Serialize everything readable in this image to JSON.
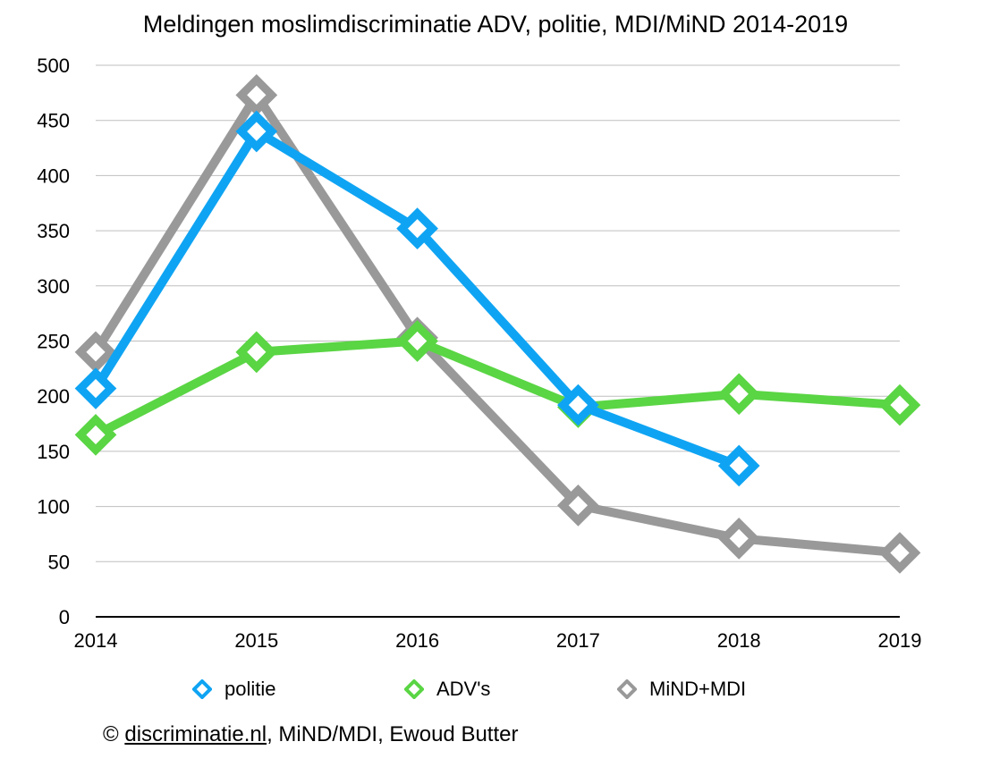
{
  "chart_data": {
    "type": "line",
    "title": "Meldingen moslimdiscriminatie ADV, politie, MDI/MiND 2014-2019",
    "categories": [
      "2014",
      "2015",
      "2016",
      "2017",
      "2018",
      "2019"
    ],
    "ylim": [
      0,
      500
    ],
    "yticks": [
      0,
      50,
      100,
      150,
      200,
      250,
      300,
      350,
      400,
      450,
      500
    ],
    "grid": true,
    "legend_position": "bottom",
    "series": [
      {
        "name": "MiND+MDI",
        "color": "#999999",
        "values": [
          240,
          473,
          253,
          101,
          71,
          58
        ]
      },
      {
        "name": "ADV's",
        "color": "#5AD544",
        "values": [
          165,
          240,
          250,
          190,
          202,
          192
        ]
      },
      {
        "name": "politie",
        "color": "#0FA4F3",
        "values": [
          207,
          440,
          352,
          192,
          137,
          null
        ]
      }
    ]
  },
  "legend_order": [
    2,
    1,
    0
  ],
  "credit": {
    "prefix": "© ",
    "link": "discriminatie.nl",
    "suffix": ", MiND/MDI, Ewoud Butter"
  }
}
